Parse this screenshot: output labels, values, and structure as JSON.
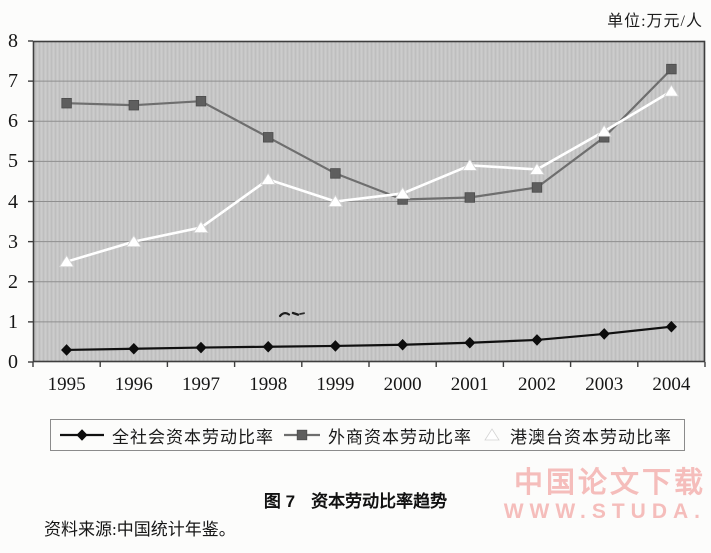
{
  "unit_label": "单位:万元/人",
  "caption": {
    "figure_label": "图 7",
    "title": "资本劳动比率趋势"
  },
  "source_note": "资料来源:中国统计年鉴。",
  "watermark": {
    "line1": "中国论文下载",
    "line2": "WWW.STUDA.",
    "color": "#f5bdbb"
  },
  "chart_data": {
    "type": "line",
    "title": "资本劳动比率趋势",
    "unit": "万元/人",
    "categories": [
      "1995",
      "1996",
      "1997",
      "1998",
      "1999",
      "2000",
      "2001",
      "2002",
      "2003",
      "2004"
    ],
    "series": [
      {
        "name": "全社会资本劳动比率",
        "marker": "diamond",
        "line_color": "#101010",
        "marker_fill": "#0d0d0d",
        "marker_edge": "#0d0d0d",
        "line_width": 2.2,
        "values": [
          0.3,
          0.33,
          0.36,
          0.38,
          0.4,
          0.43,
          0.48,
          0.55,
          0.7,
          0.88
        ]
      },
      {
        "name": "外商资本劳动比率",
        "marker": "square",
        "line_color": "#6e6e6e",
        "marker_fill": "#5e5e5e",
        "marker_edge": "#4c4c4c",
        "line_width": 2.2,
        "values": [
          6.45,
          6.4,
          6.5,
          5.6,
          4.7,
          4.05,
          4.1,
          4.35,
          5.6,
          7.3
        ]
      },
      {
        "name": "港澳台资本劳动比率",
        "marker": "triangle",
        "line_color": "#ffffff",
        "marker_fill": "#ffffff",
        "marker_edge": "#d4d4d4",
        "line_width": 2.6,
        "values": [
          2.5,
          3.0,
          3.35,
          4.55,
          4.0,
          4.2,
          4.9,
          4.8,
          5.75,
          6.75
        ]
      }
    ],
    "ylim": [
      0,
      8
    ],
    "yticks": [
      0,
      1,
      2,
      3,
      4,
      5,
      6,
      7,
      8
    ],
    "grid": "horizontal",
    "gridline_color": "#8f8f8f",
    "plot_bg": "#c6c6c6",
    "plot_border_color": "#3e3e3e",
    "legend_position": "bottom"
  }
}
